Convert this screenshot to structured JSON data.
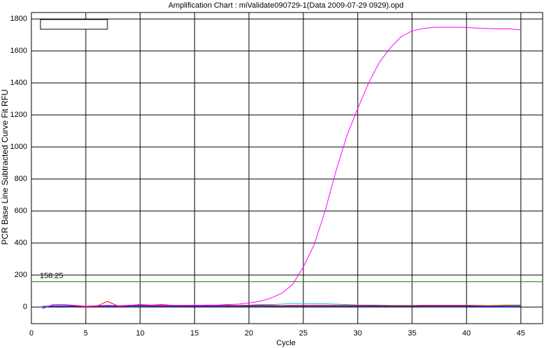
{
  "chart_data": {
    "type": "line",
    "title": "Amplification Chart : miValidate090729-1(Data 2009-07-29 0929).opd",
    "x_label": "Cycle",
    "y_label": "PCR Base Line Subtracted Curve Fit RFU",
    "x": [
      1,
      2,
      3,
      4,
      5,
      6,
      7,
      8,
      9,
      10,
      11,
      12,
      13,
      14,
      15,
      16,
      17,
      18,
      19,
      20,
      21,
      22,
      23,
      24,
      25,
      26,
      27,
      28,
      29,
      30,
      31,
      32,
      33,
      34,
      35,
      36,
      37,
      38,
      39,
      40,
      41,
      42,
      43,
      44,
      45
    ],
    "series": [
      {
        "color": "#ff00ff",
        "values": [
          -10,
          15,
          15,
          10,
          5,
          8,
          10,
          8,
          10,
          12,
          10,
          10,
          10,
          10,
          10,
          12,
          12,
          15,
          18,
          25,
          35,
          55,
          85,
          140,
          250,
          390,
          600,
          850,
          1070,
          1240,
          1400,
          1530,
          1620,
          1690,
          1725,
          1740,
          1748,
          1748,
          1748,
          1747,
          1742,
          1740,
          1738,
          1738,
          1732
        ]
      },
      {
        "color": "#ff0000",
        "values": [
          -10,
          15,
          15,
          8,
          2,
          5,
          35,
          5,
          10,
          15,
          12,
          15,
          10,
          8,
          10,
          10,
          10,
          10,
          8,
          10,
          12,
          10,
          8,
          10,
          10,
          10,
          10,
          10,
          10,
          10,
          10,
          8,
          8,
          8,
          8,
          10,
          10,
          10,
          10,
          10,
          10,
          8,
          10,
          12,
          12
        ]
      },
      {
        "color": "#0000ff",
        "values": [
          0,
          5,
          5,
          5,
          2,
          5,
          5,
          5,
          5,
          8,
          5,
          5,
          5,
          5,
          5,
          5,
          5,
          5,
          5,
          5,
          5,
          5,
          5,
          5,
          5,
          5,
          5,
          5,
          5,
          5,
          5,
          5,
          5,
          5,
          5,
          5,
          5,
          5,
          5,
          5,
          2,
          2,
          2,
          2,
          2
        ]
      },
      {
        "color": "#00c8c8",
        "values": [
          5,
          8,
          8,
          8,
          5,
          8,
          10,
          8,
          10,
          12,
          10,
          10,
          10,
          10,
          10,
          10,
          10,
          10,
          10,
          12,
          15,
          15,
          18,
          22,
          20,
          20,
          20,
          18,
          15,
          12,
          12,
          12,
          10,
          10,
          10,
          10,
          10,
          10,
          10,
          10,
          8,
          8,
          8,
          8,
          8
        ]
      },
      {
        "color": "#008000",
        "values": [
          2,
          5,
          5,
          5,
          2,
          5,
          5,
          5,
          5,
          5,
          5,
          5,
          5,
          5,
          5,
          5,
          5,
          5,
          5,
          5,
          5,
          5,
          5,
          5,
          5,
          5,
          5,
          5,
          5,
          5,
          5,
          5,
          5,
          5,
          5,
          5,
          5,
          5,
          5,
          5,
          5,
          5,
          5,
          5,
          5
        ]
      }
    ],
    "threshold": {
      "value": 158.25,
      "color": "#008000"
    },
    "xlim": [
      0,
      47
    ],
    "xticks": [
      0,
      5,
      10,
      15,
      20,
      25,
      30,
      35,
      40,
      45
    ],
    "ylim": [
      -104,
      1840
    ],
    "yticks": [
      0,
      200,
      400,
      600,
      800,
      1000,
      1200,
      1400,
      1600,
      1800
    ],
    "grid": true
  }
}
